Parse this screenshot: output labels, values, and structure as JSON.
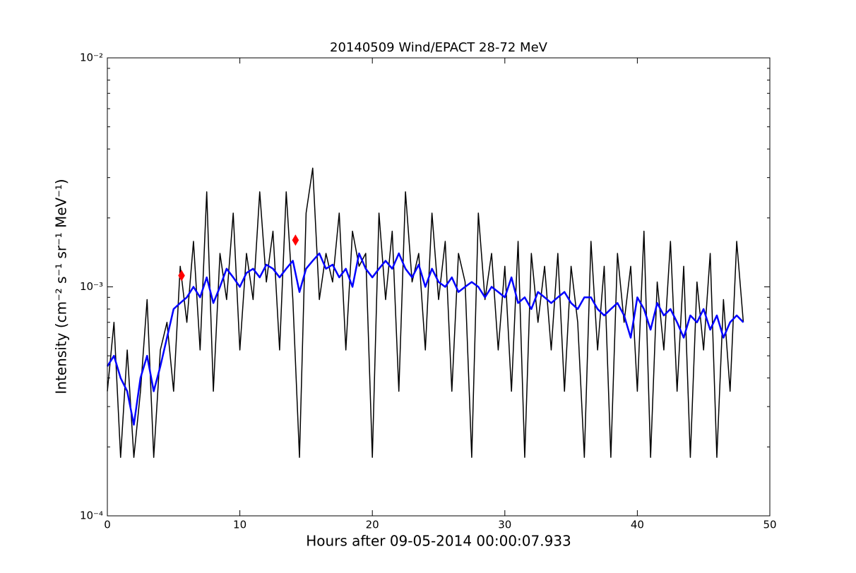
{
  "chart_data": {
    "type": "line",
    "title": "20140509 Wind/EPACT 28-72 MeV",
    "x_label": "Hours after 09-05-2014 00:00:07.933",
    "y_label": "Intensity (cm⁻² s⁻¹ sr⁻¹ MeV⁻¹)",
    "log_y": true,
    "xlim": [
      0,
      50
    ],
    "xticks": [
      0,
      10,
      20,
      30,
      40,
      50
    ],
    "ylim": [
      0.0001,
      0.01
    ],
    "yticks": [
      {
        "value": 0.0001,
        "label": "10⁻⁴"
      },
      {
        "value": 0.001,
        "label": "10⁻³"
      },
      {
        "value": 0.01,
        "label": "10⁻²"
      }
    ],
    "yminorticks": [
      0.0002,
      0.0003,
      0.0004,
      0.0005,
      0.0006,
      0.0007,
      0.0008,
      0.0009,
      0.002,
      0.003,
      0.004,
      0.005,
      0.006,
      0.007,
      0.008,
      0.009
    ],
    "x": [
      0,
      0.5,
      1,
      1.5,
      2,
      2.5,
      3,
      3.5,
      4,
      4.5,
      5,
      5.5,
      6,
      6.5,
      7,
      7.5,
      8,
      8.5,
      9,
      9.5,
      10,
      10.5,
      11,
      11.5,
      12,
      12.5,
      13,
      13.5,
      14,
      14.5,
      15,
      15.5,
      16,
      16.5,
      17,
      17.5,
      18,
      18.5,
      19,
      19.5,
      20,
      20.5,
      21,
      21.5,
      22,
      22.5,
      23,
      23.5,
      24,
      24.5,
      25,
      25.5,
      26,
      26.5,
      27,
      27.5,
      28,
      28.5,
      29,
      29.5,
      30,
      30.5,
      31,
      31.5,
      32,
      32.5,
      33,
      33.5,
      34,
      34.5,
      35,
      35.5,
      36,
      36.5,
      37,
      37.5,
      38,
      38.5,
      39,
      39.5,
      40,
      40.5,
      41,
      41.5,
      42,
      42.5,
      43,
      43.5,
      44,
      44.5,
      45,
      45.5,
      46,
      46.5,
      47,
      47.5,
      48
    ],
    "series": [
      {
        "color": "#000000",
        "width": 1.5,
        "values": [
          0.00035,
          0.0007,
          0.00018,
          0.00053,
          0.00018,
          0.00035,
          0.00088,
          0.00018,
          0.00053,
          0.0007,
          0.00035,
          0.00123,
          0.0007,
          0.00158,
          0.00053,
          0.0026,
          0.00035,
          0.0014,
          0.00088,
          0.0021,
          0.00053,
          0.0014,
          0.00088,
          0.0026,
          0.00105,
          0.00175,
          0.00053,
          0.0026,
          0.00088,
          0.00018,
          0.0021,
          0.0033,
          0.00088,
          0.0014,
          0.00105,
          0.0021,
          0.00053,
          0.00175,
          0.00123,
          0.0014,
          0.00018,
          0.0021,
          0.00088,
          0.00175,
          0.00035,
          0.0026,
          0.00105,
          0.0014,
          0.00053,
          0.0021,
          0.00088,
          0.00158,
          0.00035,
          0.0014,
          0.00105,
          0.00018,
          0.0021,
          0.00088,
          0.0014,
          0.00053,
          0.00123,
          0.00035,
          0.00158,
          0.00018,
          0.0014,
          0.0007,
          0.00123,
          0.00053,
          0.0014,
          0.00035,
          0.00123,
          0.0007,
          0.00018,
          0.00158,
          0.00053,
          0.00123,
          0.00018,
          0.0014,
          0.0007,
          0.00123,
          0.00035,
          0.00175,
          0.00018,
          0.00105,
          0.00053,
          0.00158,
          0.00035,
          0.00123,
          0.00018,
          0.00105,
          0.00053,
          0.0014,
          0.00018,
          0.00088,
          0.00035,
          0.00158,
          0.0007
        ]
      },
      {
        "color": "#0000ff",
        "width": 2.5,
        "values": [
          0.00045,
          0.0005,
          0.0004,
          0.00035,
          0.00025,
          0.0004,
          0.0005,
          0.00035,
          0.00045,
          0.0006,
          0.0008,
          0.00085,
          0.0009,
          0.001,
          0.0009,
          0.0011,
          0.00085,
          0.001,
          0.0012,
          0.0011,
          0.001,
          0.00115,
          0.0012,
          0.0011,
          0.00125,
          0.0012,
          0.0011,
          0.0012,
          0.0013,
          0.00095,
          0.0012,
          0.0013,
          0.0014,
          0.0012,
          0.00125,
          0.0011,
          0.0012,
          0.001,
          0.0014,
          0.0012,
          0.0011,
          0.0012,
          0.0013,
          0.0012,
          0.0014,
          0.0012,
          0.0011,
          0.00125,
          0.001,
          0.0012,
          0.00105,
          0.001,
          0.0011,
          0.00095,
          0.001,
          0.00105,
          0.001,
          0.0009,
          0.001,
          0.00095,
          0.0009,
          0.0011,
          0.00085,
          0.0009,
          0.0008,
          0.00095,
          0.0009,
          0.00085,
          0.0009,
          0.00095,
          0.00085,
          0.0008,
          0.0009,
          0.0009,
          0.0008,
          0.00075,
          0.0008,
          0.00085,
          0.00075,
          0.0006,
          0.0009,
          0.0008,
          0.00065,
          0.00085,
          0.00075,
          0.0008,
          0.0007,
          0.0006,
          0.00075,
          0.0007,
          0.0008,
          0.00065,
          0.00075,
          0.0006,
          0.0007,
          0.00075,
          0.0007
        ]
      }
    ],
    "markers": {
      "color": "#ff0000",
      "x": [
        5.6,
        14.2
      ],
      "values": [
        0.00112,
        0.0016
      ]
    }
  }
}
